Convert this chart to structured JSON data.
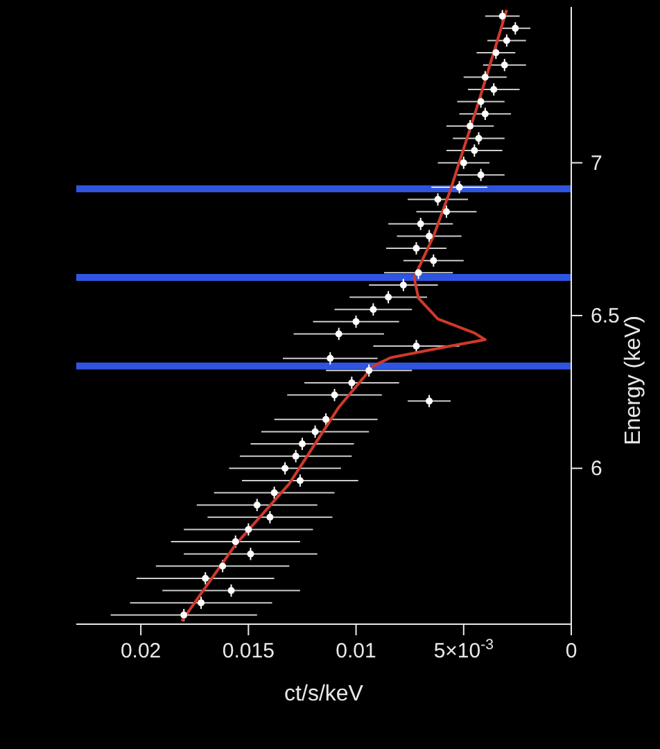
{
  "chart_data": {
    "type": "scatter",
    "xlabel": "ct/s/keV",
    "ylabel": "Energy (keV)",
    "ylim": [
      5.49,
      7.51
    ],
    "yticks": [
      6,
      6.5,
      7
    ],
    "xlim": [
      0.023,
      0
    ],
    "xticks": [
      0,
      {
        "value": 0.005,
        "label": "5×10$^{-3}$"
      },
      0.01,
      0.015,
      0.02
    ],
    "legend": false,
    "grid": false,
    "series": [
      {
        "color": "#ffffff",
        "values": [
          7.48,
          7.44,
          7.4,
          7.36,
          7.32,
          7.28,
          7.24,
          7.2,
          7.16,
          7.12,
          7.08,
          7.04,
          7.0,
          6.96,
          6.92,
          6.88,
          6.84,
          6.8,
          6.76,
          6.72,
          6.68,
          6.64,
          6.6,
          6.56,
          6.52,
          6.48,
          6.44,
          6.4,
          6.36,
          6.32,
          6.28,
          6.24,
          6.22,
          6.16,
          6.12,
          6.08,
          6.04,
          6.0,
          5.96,
          5.92,
          5.88,
          5.84,
          5.8,
          5.76,
          5.72,
          5.68,
          5.64,
          5.6,
          5.56,
          5.52
        ],
        "x": [
          0.0032,
          0.0026,
          0.003,
          0.0035,
          0.0031,
          0.004,
          0.0036,
          0.0042,
          0.004,
          0.0047,
          0.0043,
          0.0045,
          0.005,
          0.0042,
          0.0052,
          0.0062,
          0.0058,
          0.007,
          0.0066,
          0.0072,
          0.0064,
          0.0071,
          0.0078,
          0.0085,
          0.0092,
          0.01,
          0.0108,
          0.0072,
          0.0112,
          0.0094,
          0.0102,
          0.011,
          0.0066,
          0.0114,
          0.0119,
          0.0125,
          0.0128,
          0.0133,
          0.0126,
          0.0138,
          0.0146,
          0.014,
          0.015,
          0.0156,
          0.0149,
          0.0162,
          0.017,
          0.0158,
          0.0172,
          0.018
        ],
        "xerrors": [
          0.0008,
          0.0007,
          0.0009,
          0.0009,
          0.001,
          0.001,
          0.0012,
          0.0011,
          0.0012,
          0.0011,
          0.0012,
          0.0013,
          0.0012,
          0.0011,
          0.0013,
          0.0014,
          0.0014,
          0.0015,
          0.0015,
          0.0014,
          0.0014,
          0.0016,
          0.0016,
          0.0018,
          0.0018,
          0.002,
          0.0021,
          0.002,
          0.0022,
          0.002,
          0.0022,
          0.0022,
          0.001,
          0.0024,
          0.0025,
          0.0024,
          0.0026,
          0.0026,
          0.0027,
          0.0028,
          0.0028,
          0.0029,
          0.003,
          0.003,
          0.0031,
          0.0031,
          0.0032,
          0.0032,
          0.0033,
          0.0034
        ],
        "errors": [
          0.02,
          0.02,
          0.02,
          0.02,
          0.02,
          0.02,
          0.02,
          0.02,
          0.02,
          0.02,
          0.02,
          0.02,
          0.02,
          0.02,
          0.02,
          0.02,
          0.02,
          0.02,
          0.02,
          0.02,
          0.02,
          0.02,
          0.02,
          0.02,
          0.02,
          0.02,
          0.02,
          0.02,
          0.02,
          0.02,
          0.02,
          0.02,
          0.02,
          0.02,
          0.02,
          0.02,
          0.02,
          0.02,
          0.02,
          0.02,
          0.02,
          0.02,
          0.02,
          0.02,
          0.02,
          0.02,
          0.02,
          0.02,
          0.02,
          0.02
        ]
      },
      {
        "type": "line",
        "color": "#d0392b",
        "values": [
          5.5,
          5.75,
          5.95,
          6.2,
          6.335,
          6.362,
          6.398,
          6.421,
          6.443,
          6.489,
          6.557,
          6.624,
          6.76,
          6.914,
          7.2,
          7.5
        ],
        "x": [
          0.0181,
          0.0156,
          0.0131,
          0.0108,
          0.0092,
          0.0084,
          0.0058,
          0.004,
          0.0045,
          0.0062,
          0.0071,
          0.0073,
          0.0064,
          0.0056,
          0.0043,
          0.003
        ]
      }
    ],
    "ref_lines": [
      {
        "axis": "y",
        "value": 6.335,
        "color": "#2f55e0"
      },
      {
        "axis": "y",
        "value": 6.625,
        "color": "#2f55e0"
      },
      {
        "axis": "y",
        "value": 6.915,
        "color": "#2f55e0"
      }
    ]
  }
}
